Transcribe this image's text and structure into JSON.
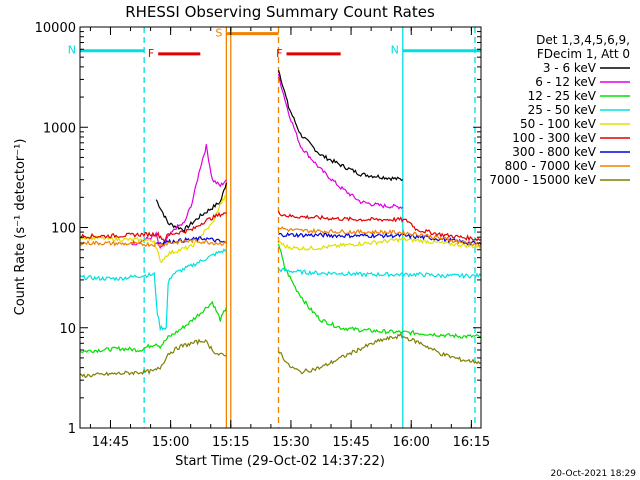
{
  "chart_data": {
    "type": "line",
    "title": "RHESSI Observing Summary Count Rates",
    "xlabel": "Start Time (29-Oct-02 14:37:22)",
    "ylabel": "Count Rate (s⁻¹ detector⁻¹)",
    "yscale": "log",
    "ylim": [
      1,
      10000
    ],
    "xlim_minutes": [
      0,
      100
    ],
    "x_ticks": [
      {
        "t": 7.6,
        "label": "14:45"
      },
      {
        "t": 22.6,
        "label": "15:00"
      },
      {
        "t": 37.6,
        "label": "15:15"
      },
      {
        "t": 52.6,
        "label": "15:30"
      },
      {
        "t": 67.6,
        "label": "15:45"
      },
      {
        "t": 82.6,
        "label": "16:00"
      },
      {
        "t": 97.6,
        "label": "16:15"
      }
    ],
    "y_ticks": [
      {
        "v": 1,
        "label": "1"
      },
      {
        "v": 10,
        "label": "10"
      },
      {
        "v": 100,
        "label": "100"
      },
      {
        "v": 1000,
        "label": "1000"
      },
      {
        "v": 10000,
        "label": "10000"
      }
    ],
    "legend_header": [
      "Det 1,3,4,5,6,9,",
      "FDecim 1, Att 0"
    ],
    "legend_position": "right",
    "series": [
      {
        "name": "3 - 6 keV",
        "color": "#000000",
        "segments": [
          {
            "t": [
              0,
              8,
              16,
              18.8,
              19,
              22,
              26,
              30,
              35,
              36.5
            ],
            "v": [
              null,
              null,
              null,
              null,
              190,
              110,
              95,
              130,
              180,
              280
            ]
          },
          {
            "t": [
              49.5,
              52,
              55,
              60,
              65,
              70,
              75,
              80.5
            ],
            "v": [
              3800,
              1600,
              850,
              530,
              420,
              340,
              320,
              300
            ]
          }
        ]
      },
      {
        "name": "6 - 12 keV",
        "color": "#e000e0",
        "segments": [
          {
            "t": [
              12.8,
              14,
              16,
              18,
              19,
              20,
              22,
              24,
              26,
              28,
              30,
              31.5,
              33,
              35,
              36.5
            ],
            "v": [
              70,
              70,
              75,
              80,
              85,
              60,
              80,
              100,
              110,
              180,
              400,
              650,
              300,
              260,
              300
            ]
          },
          {
            "t": [
              49.5,
              52,
              55,
              60,
              65,
              70,
              75,
              80.5
            ],
            "v": [
              3300,
              1400,
              650,
              380,
              250,
              180,
              165,
              160
            ]
          }
        ]
      },
      {
        "name": "12 - 25 keV",
        "color": "#00e000",
        "segments": [
          {
            "t": [
              0,
              5,
              10,
              15,
              17,
              19,
              20,
              22,
              24,
              27,
              30,
              33,
              35,
              36.5
            ],
            "v": [
              5.8,
              6,
              6.2,
              6,
              6.5,
              7,
              6.5,
              8,
              9,
              11,
              14,
              18,
              12,
              16
            ]
          },
          {
            "t": [
              49.5,
              51,
              54,
              57,
              60,
              65,
              70,
              75,
              80.5,
              85,
              90,
              95,
              100
            ],
            "v": [
              70,
              40,
              24,
              16,
              12,
              10,
              9.5,
              9.2,
              9,
              8.8,
              8.5,
              8.2,
              8.2
            ]
          }
        ]
      },
      {
        "name": "25 - 50 keV",
        "color": "#00e0e0",
        "segments": [
          {
            "t": [
              0,
              5,
              10,
              15,
              18.5,
              19.3,
              20,
              21.5,
              22,
              23,
              25,
              28,
              31,
              34,
              36.5
            ],
            "v": [
              32,
              31,
              31,
              33,
              34,
              14,
              10,
              10,
              28,
              34,
              37,
              42,
              48,
              55,
              60
            ]
          },
          {
            "t": [
              49.5,
              52,
              55,
              60,
              65,
              70,
              75,
              80,
              85,
              90,
              95,
              100
            ],
            "v": [
              38,
              37,
              36,
              35,
              35,
              34,
              34,
              34,
              34,
              33,
              33,
              33
            ]
          }
        ]
      },
      {
        "name": "50 - 100 keV",
        "color": "#e0e000",
        "segments": [
          {
            "t": [
              0,
              5,
              10,
              15,
              18.5,
              19.5,
              20,
              22,
              25,
              28,
              31,
              33,
              35,
              36.5
            ],
            "v": [
              80,
              78,
              76,
              75,
              74,
              55,
              45,
              55,
              60,
              65,
              90,
              110,
              170,
              210
            ]
          },
          {
            "t": [
              49.5,
              51,
              54,
              57,
              60,
              65,
              70,
              75,
              80,
              85,
              90,
              95,
              100
            ],
            "v": [
              75,
              65,
              62,
              62,
              63,
              66,
              69,
              72,
              76,
              74,
              70,
              67,
              64
            ]
          }
        ]
      },
      {
        "name": "100 - 300 keV",
        "color": "#e00000",
        "segments": [
          {
            "t": [
              0,
              5,
              10,
              15,
              18.5,
              19.5,
              21,
              22,
              25,
              28,
              31,
              33,
              35,
              36.5
            ],
            "v": [
              82,
              82,
              83,
              85,
              86,
              85,
              75,
              85,
              90,
              95,
              115,
              125,
              135,
              140
            ]
          },
          {
            "t": [
              49.5,
              52,
              55,
              60,
              65,
              70,
              75,
              80,
              82,
              84,
              87,
              90,
              95,
              100
            ],
            "v": [
              140,
              130,
              128,
              125,
              122,
              120,
              120,
              120,
              115,
              95,
              90,
              85,
              80,
              76
            ]
          }
        ]
      },
      {
        "name": "300 - 800 keV",
        "color": "#0000e0",
        "segments": [
          {
            "t": [
              19,
              22,
              25,
              28,
              31,
              34,
              36.5
            ],
            "v": [
              70,
              72,
              74,
              76,
              78,
              74,
              70
            ]
          },
          {
            "t": [
              49.5,
              55,
              60,
              65,
              70,
              75,
              80,
              85,
              90,
              95,
              100
            ],
            "v": [
              85,
              84,
              84,
              83,
              83,
              83,
              83,
              80,
              77,
              72,
              68
            ]
          }
        ]
      },
      {
        "name": "800 - 7000 keV",
        "color": "#f08000",
        "segments": [
          {
            "t": [
              0,
              5,
              10,
              15,
              18.5,
              20,
              22,
              25,
              28,
              31,
              34,
              36.5
            ],
            "v": [
              70,
              70,
              69,
              68,
              68,
              67,
              70,
              72,
              74,
              72,
              70,
              69
            ]
          },
          {
            "t": [
              49.5,
              52,
              55,
              60,
              65,
              70,
              75,
              80,
              85,
              90,
              95,
              100
            ],
            "v": [
              100,
              95,
              93,
              92,
              91,
              90,
              90,
              89,
              85,
              78,
              72,
              67
            ]
          }
        ]
      },
      {
        "name": "7000 - 15000 keV",
        "color": "#808000",
        "segments": [
          {
            "t": [
              0,
              5,
              10,
              15,
              18.5,
              20,
              22,
              25,
              28,
              31,
              34,
              36.5
            ],
            "v": [
              3.3,
              3.4,
              3.5,
              3.6,
              3.7,
              4,
              5.5,
              6.5,
              7,
              7.5,
              5.5,
              5.2
            ]
          },
          {
            "t": [
              49.5,
              52,
              55,
              60,
              65,
              70,
              75,
              80,
              85,
              90,
              95,
              100
            ],
            "v": [
              6,
              4.2,
              3.6,
              4,
              5,
              6.2,
              7.5,
              8.3,
              7,
              5.5,
              4.8,
              4.5
            ]
          }
        ]
      }
    ],
    "annotations": {
      "flags": [
        {
          "label": "F",
          "color": "#e00000",
          "t_start": 19.5,
          "t_end": 30,
          "level": 5400
        },
        {
          "label": "F",
          "color": "#e00000",
          "t_start": 51.5,
          "t_end": 65,
          "level": 5400
        },
        {
          "label": "N",
          "color": "#00e0e0",
          "t_start": 0,
          "t_end": 16,
          "level": 5800
        },
        {
          "label": "N",
          "color": "#00e0e0",
          "t_start": 80.5,
          "t_end": 100,
          "level": 5800
        },
        {
          "label": "S",
          "color": "#f08000",
          "t_start": 36.5,
          "t_end": 49.5,
          "level": 8600
        }
      ],
      "vlines": [
        {
          "t": 16,
          "color": "#00e0e0",
          "style": "dashed"
        },
        {
          "t": 80.5,
          "color": "#00e0e0",
          "style": "solid"
        },
        {
          "t": 98.5,
          "color": "#00e0e0",
          "style": "dashed"
        },
        {
          "t": 36.5,
          "color": "#f08000",
          "style": "solid"
        },
        {
          "t": 37.6,
          "color": "#f08000",
          "style": "solid"
        },
        {
          "t": 49.5,
          "color": "#f08000",
          "style": "dashed"
        }
      ]
    },
    "footer_date": "20-Oct-2021 18:29"
  }
}
